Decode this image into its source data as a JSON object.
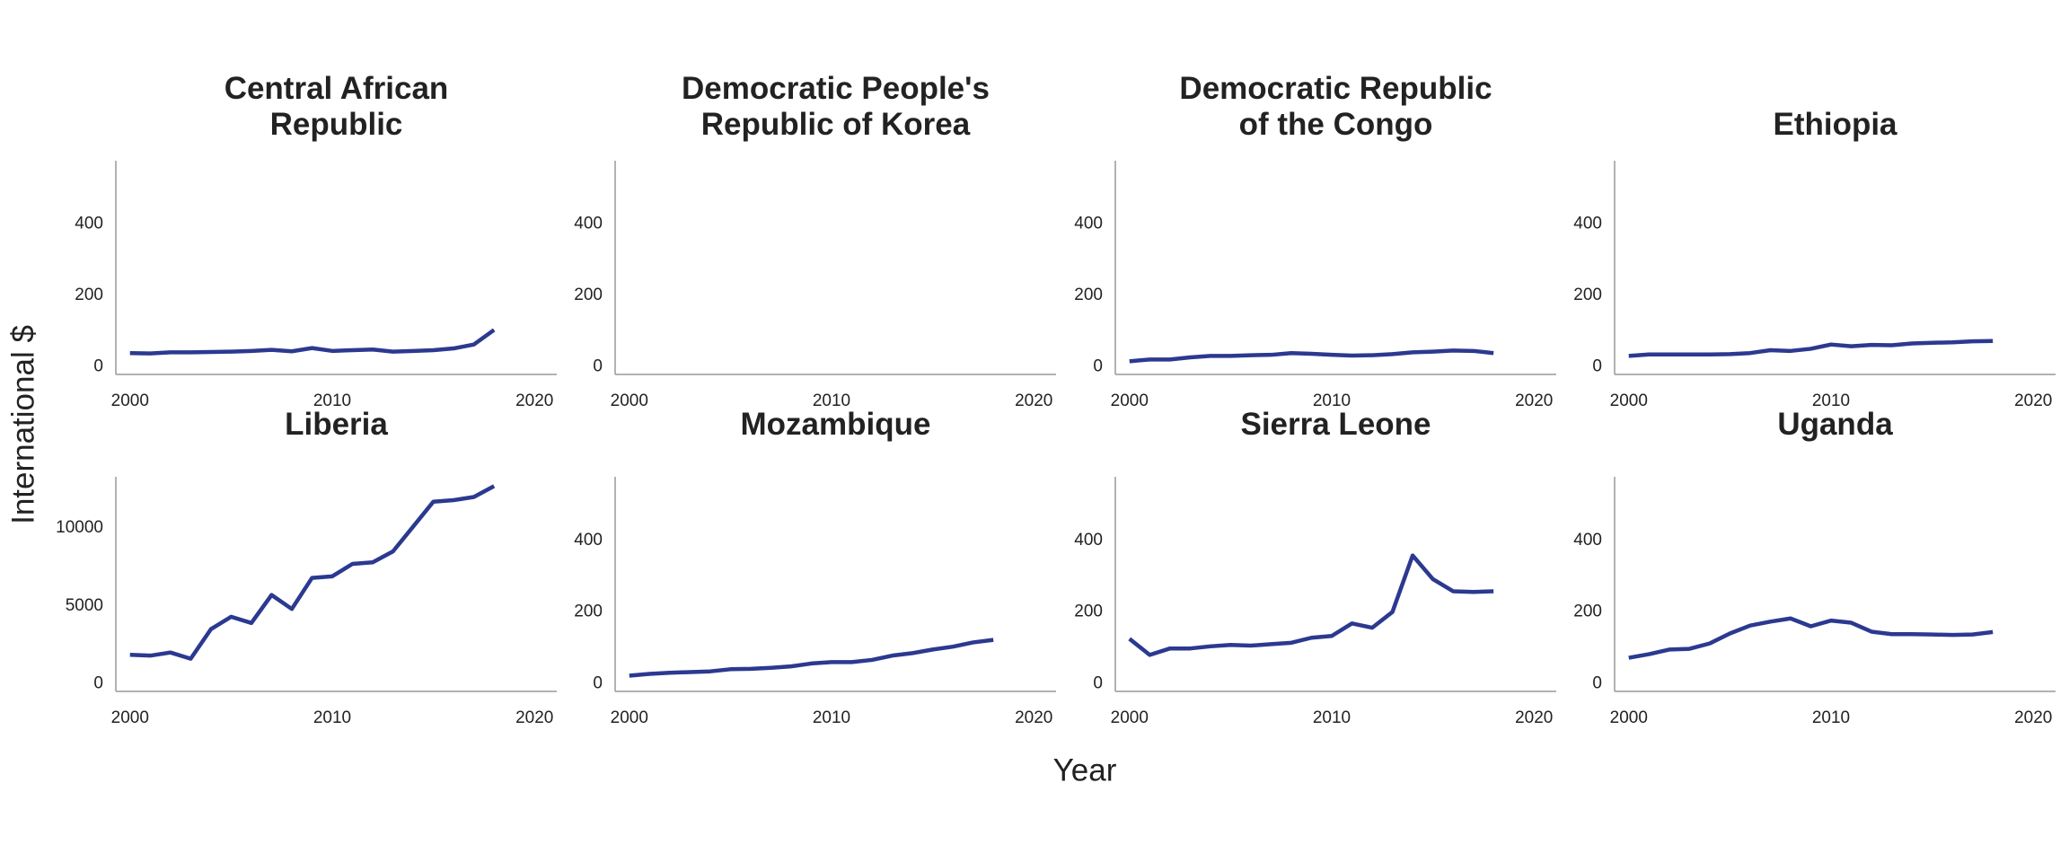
{
  "xlabel": "Year",
  "ylabel": "International $",
  "chart_data": [
    {
      "type": "line",
      "title": "Central African\nRepublic",
      "x": [
        2000,
        2001,
        2002,
        2003,
        2004,
        2005,
        2006,
        2007,
        2008,
        2009,
        2010,
        2011,
        2012,
        2013,
        2014,
        2015,
        2016,
        2017,
        2018
      ],
      "series": [
        {
          "color": "#2b3990",
          "values": [
            38,
            37,
            40,
            40,
            41,
            42,
            44,
            47,
            43,
            52,
            44,
            46,
            48,
            42,
            44,
            46,
            51,
            62,
            103
          ]
        }
      ],
      "xlim": [
        1999.3,
        2021.1
      ],
      "xticks": [
        2000,
        2010,
        2020
      ],
      "ylim": [
        -22,
        578
      ],
      "yticks": [
        0,
        200,
        400
      ]
    },
    {
      "type": "line",
      "title": "Democratic People's\nRepublic of Korea",
      "x": [
        2000,
        2001,
        2002,
        2003,
        2004,
        2005,
        2006,
        2007,
        2008,
        2009,
        2010,
        2011,
        2012,
        2013,
        2014,
        2015,
        2016,
        2017,
        2018
      ],
      "series": [
        {
          "color": "#2b3990",
          "values": [
            null,
            null,
            null,
            null,
            null,
            null,
            null,
            null,
            null,
            null,
            null,
            null,
            null,
            null,
            null,
            null,
            null,
            null,
            null
          ]
        }
      ],
      "xlim": [
        1999.3,
        2021.1
      ],
      "xticks": [
        2000,
        2010,
        2020
      ],
      "ylim": [
        -22,
        578
      ],
      "yticks": [
        0,
        200,
        400
      ]
    },
    {
      "type": "line",
      "title": "Democratic Republic\nof the Congo",
      "x": [
        2000,
        2001,
        2002,
        2003,
        2004,
        2005,
        2006,
        2007,
        2008,
        2009,
        2010,
        2011,
        2012,
        2013,
        2014,
        2015,
        2016,
        2017,
        2018
      ],
      "series": [
        {
          "color": "#2b3990",
          "values": [
            15,
            20,
            20,
            26,
            30,
            30,
            32,
            33,
            38,
            36,
            33,
            31,
            32,
            35,
            40,
            42,
            45,
            44,
            38
          ]
        }
      ],
      "xlim": [
        1999.3,
        2021.1
      ],
      "xticks": [
        2000,
        2010,
        2020
      ],
      "ylim": [
        -22,
        578
      ],
      "yticks": [
        0,
        200,
        400
      ]
    },
    {
      "type": "line",
      "title": "Ethiopia",
      "x": [
        2000,
        2001,
        2002,
        2003,
        2004,
        2005,
        2006,
        2007,
        2008,
        2009,
        2010,
        2011,
        2012,
        2013,
        2014,
        2015,
        2016,
        2017,
        2018
      ],
      "series": [
        {
          "color": "#2b3990",
          "values": [
            30,
            34,
            34,
            34,
            34,
            35,
            38,
            46,
            44,
            50,
            62,
            57,
            61,
            60,
            65,
            67,
            68,
            71,
            72
          ]
        }
      ],
      "xlim": [
        1999.3,
        2021.1
      ],
      "xticks": [
        2000,
        2010,
        2020
      ],
      "ylim": [
        -22,
        578
      ],
      "yticks": [
        0,
        200,
        400
      ]
    },
    {
      "type": "line",
      "title": "Liberia",
      "x": [
        2000,
        2001,
        2002,
        2003,
        2004,
        2005,
        2006,
        2007,
        2008,
        2009,
        2010,
        2011,
        2012,
        2013,
        2014,
        2015,
        2016,
        2017,
        2018
      ],
      "series": [
        {
          "color": "#2b3990",
          "values": [
            1850,
            1800,
            2000,
            1600,
            3500,
            4300,
            3900,
            5700,
            4800,
            6800,
            6900,
            7700,
            7800,
            8500,
            10100,
            11700,
            11800,
            12000,
            12700
          ]
        }
      ],
      "xlim": [
        1999.3,
        2021.1
      ],
      "xticks": [
        2000,
        2010,
        2020
      ],
      "ylim": [
        -500,
        13300
      ],
      "yticks": [
        0,
        5000,
        10000
      ]
    },
    {
      "type": "line",
      "title": "Mozambique",
      "x": [
        2000,
        2001,
        2002,
        2003,
        2004,
        2005,
        2006,
        2007,
        2008,
        2009,
        2010,
        2011,
        2012,
        2013,
        2014,
        2015,
        2016,
        2017,
        2018
      ],
      "series": [
        {
          "color": "#2b3990",
          "values": [
            22,
            27,
            30,
            32,
            34,
            40,
            41,
            44,
            48,
            56,
            60,
            60,
            66,
            78,
            85,
            95,
            103,
            115,
            122
          ]
        }
      ],
      "xlim": [
        1999.3,
        2021.1
      ],
      "xticks": [
        2000,
        2010,
        2020
      ],
      "ylim": [
        -22,
        578
      ],
      "yticks": [
        0,
        200,
        400
      ]
    },
    {
      "type": "line",
      "title": "Sierra Leone",
      "x": [
        2000,
        2001,
        2002,
        2003,
        2004,
        2005,
        2006,
        2007,
        2008,
        2009,
        2010,
        2011,
        2012,
        2013,
        2014,
        2015,
        2016,
        2017,
        2018
      ],
      "series": [
        {
          "color": "#2b3990",
          "values": [
            125,
            80,
            98,
            98,
            104,
            108,
            106,
            110,
            114,
            128,
            133,
            168,
            156,
            200,
            358,
            292,
            258,
            256,
            258
          ]
        }
      ],
      "xlim": [
        1999.3,
        2021.1
      ],
      "xticks": [
        2000,
        2010,
        2020
      ],
      "ylim": [
        -22,
        578
      ],
      "yticks": [
        0,
        200,
        400
      ]
    },
    {
      "type": "line",
      "title": "Uganda",
      "x": [
        2000,
        2001,
        2002,
        2003,
        2004,
        2005,
        2006,
        2007,
        2008,
        2009,
        2010,
        2011,
        2012,
        2013,
        2014,
        2015,
        2016,
        2017,
        2018
      ],
      "series": [
        {
          "color": "#2b3990",
          "values": [
            72,
            82,
            95,
            97,
            112,
            140,
            162,
            173,
            182,
            160,
            176,
            170,
            145,
            138,
            138,
            137,
            136,
            137,
            144
          ]
        }
      ],
      "xlim": [
        1999.3,
        2021.1
      ],
      "xticks": [
        2000,
        2010,
        2020
      ],
      "ylim": [
        -22,
        578
      ],
      "yticks": [
        0,
        200,
        400
      ]
    }
  ]
}
